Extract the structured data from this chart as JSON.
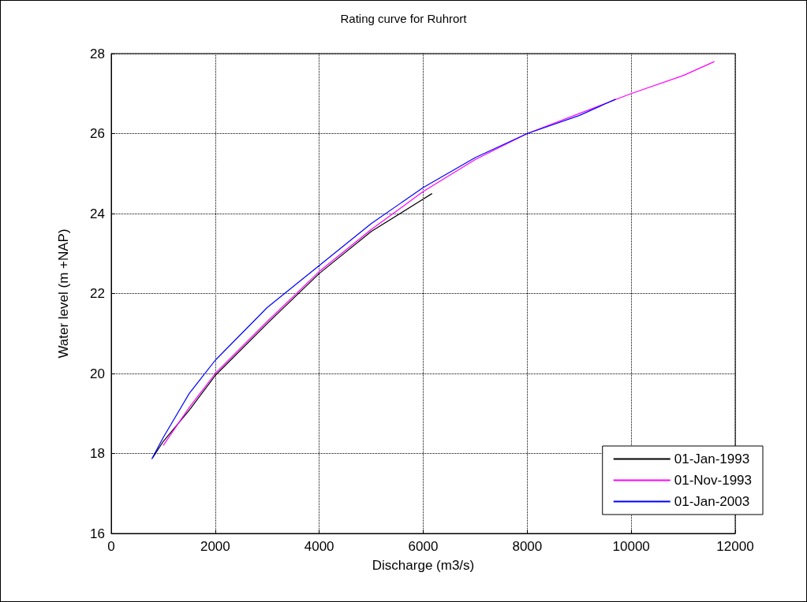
{
  "chart_data": {
    "type": "line",
    "title": "Rating curve for Ruhrort",
    "xlabel": "Discharge (m3/s)",
    "ylabel": "Water level (m +NAP)",
    "xlim": [
      0,
      12000
    ],
    "xticks": [
      0,
      2000,
      4000,
      6000,
      8000,
      10000,
      12000
    ],
    "ylim": [
      16,
      28
    ],
    "yticks": [
      16,
      18,
      20,
      22,
      24,
      26,
      28
    ],
    "grid": true,
    "legend": "bottom right",
    "marker": "none",
    "line_style": "solid",
    "series": [
      {
        "name": "01-Jan-1993",
        "color": "#000000",
        "x": [
          800,
          1000,
          1500,
          2000,
          3000,
          4000,
          5000,
          6170
        ],
        "values": [
          17.9,
          18.3,
          19.08,
          19.95,
          21.25,
          22.5,
          23.55,
          24.5
        ]
      },
      {
        "name": "01-Nov-1993",
        "color": "#ff00ff",
        "x": [
          1000,
          1500,
          2000,
          3000,
          4000,
          5000,
          6000,
          7000,
          8000,
          9000,
          10000,
          11000,
          11600
        ],
        "values": [
          18.2,
          19.15,
          20.0,
          21.3,
          22.55,
          23.6,
          24.55,
          25.35,
          26.0,
          26.5,
          27.0,
          27.45,
          27.8
        ]
      },
      {
        "name": "01-Jan-2003",
        "color": "#0000ff",
        "x": [
          780,
          1000,
          1500,
          2000,
          3000,
          4000,
          5000,
          6000,
          7000,
          8000,
          9000,
          9700
        ],
        "values": [
          17.86,
          18.4,
          19.5,
          20.33,
          21.65,
          22.7,
          23.75,
          24.65,
          25.4,
          26.0,
          26.45,
          26.86
        ]
      }
    ]
  }
}
